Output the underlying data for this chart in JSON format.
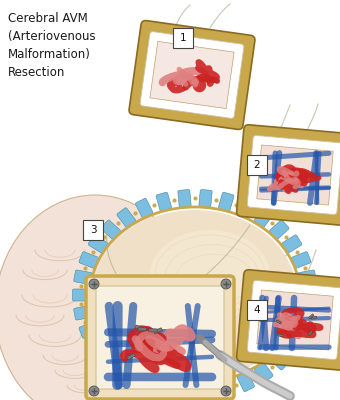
{
  "title": "Cerebral AVM\n(Arteriovenous\nMalformation)\nResection",
  "bg_color": "#ffffff",
  "title_color": "#1a1a1a",
  "title_fontsize": 8.5,
  "brain_color": "#f2ddd0",
  "brain_outline": "#c8a882",
  "brain_sulci": "#c8a882",
  "flap_color": "#f5e8d5",
  "flap_highlight": "#f0dfc5",
  "suture_blue": "#7bbee0",
  "suture_gold": "#c8a84b",
  "frame_gold": "#c8a84b",
  "frame_gold_dark": "#8a6a20",
  "frame_white": "#ffffff",
  "avm_red": "#cc2222",
  "avm_dark_red": "#991111",
  "avm_blue": "#2255aa",
  "avm_pink": "#e08080",
  "label_bg": "#ffffff",
  "label_border": "#444444",
  "label_fontsize": 7.5,
  "thread_color": "#b0b090",
  "clip_color": "#777777",
  "tool_gray": "#999999"
}
